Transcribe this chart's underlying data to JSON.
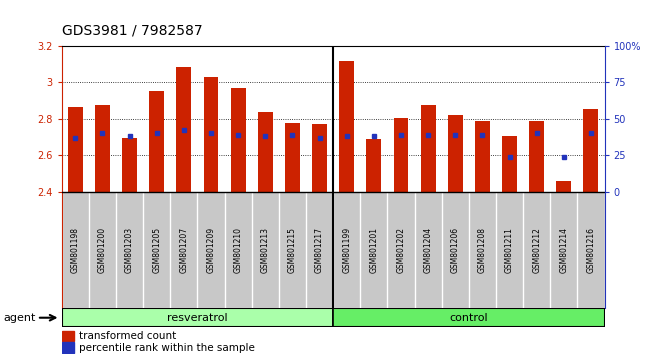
{
  "title": "GDS3981 / 7982587",
  "samples": [
    "GSM801198",
    "GSM801200",
    "GSM801203",
    "GSM801205",
    "GSM801207",
    "GSM801209",
    "GSM801210",
    "GSM801213",
    "GSM801215",
    "GSM801217",
    "GSM801199",
    "GSM801201",
    "GSM801202",
    "GSM801204",
    "GSM801206",
    "GSM801208",
    "GSM801211",
    "GSM801212",
    "GSM801214",
    "GSM801216"
  ],
  "bar_values": [
    2.865,
    2.875,
    2.695,
    2.95,
    3.085,
    3.03,
    2.97,
    2.835,
    2.775,
    2.77,
    3.115,
    2.69,
    2.805,
    2.875,
    2.82,
    2.79,
    2.705,
    2.79,
    2.46,
    2.855
  ],
  "percentile_values": [
    37,
    40,
    38,
    40,
    42,
    40,
    39,
    38,
    39,
    37,
    38,
    38,
    39,
    39,
    39,
    39,
    24,
    40,
    24,
    40
  ],
  "resveratrol_count": 10,
  "control_count": 10,
  "ymin": 2.4,
  "ymax": 3.2,
  "y_ticks": [
    2.4,
    2.6,
    2.8,
    3.0,
    3.2
  ],
  "right_yticks": [
    0,
    25,
    50,
    75,
    100
  ],
  "bar_color": "#cc2200",
  "blue_color": "#2233bb",
  "resveratrol_color": "#aaffaa",
  "control_color": "#66ee66",
  "gray_color": "#c8c8c8",
  "agent_label": "agent",
  "resveratrol_label": "resveratrol",
  "control_label": "control",
  "legend_bar_label": "transformed count",
  "legend_blue_label": "percentile rank within the sample"
}
